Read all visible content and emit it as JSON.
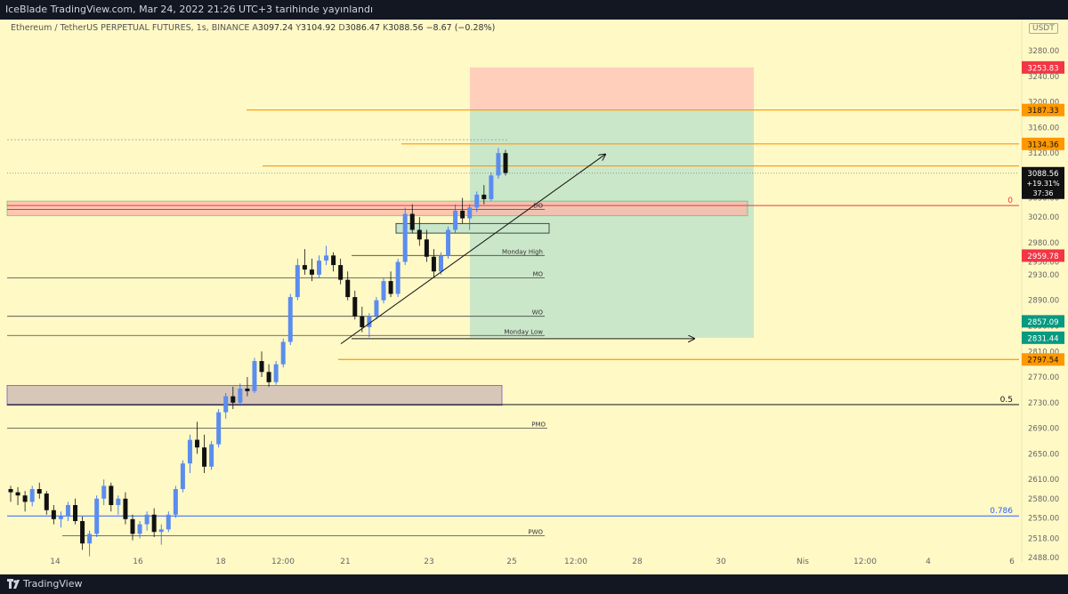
{
  "header": {
    "published": "IceBlade TradingView.com, Mar 24, 2022 21:26 UTC+3 tarihinde yayınlandı"
  },
  "symbol": {
    "name": "Ethereum / TetherUS PERPETUAL FUTURES, 1s, BINANCE",
    "open_label": "A",
    "open": "3097.24",
    "high_label": "Y",
    "high": "3104.92",
    "low_label": "D",
    "low": "3086.47",
    "close_label": "K",
    "close": "3088.56",
    "change": "−8.67 (−0.28%)"
  },
  "currency_badge": "USDT",
  "footer": {
    "brand": "TradingView"
  },
  "colors": {
    "background": "#fff9c6",
    "orange_level": "#ff9800",
    "red_label": "#f23645",
    "teal_label": "#089981",
    "green_zone": "#c8e6c9",
    "red_zone": "#ffccbc",
    "blue_line": "#2962ff"
  },
  "chart_data": {
    "type": "candlestick",
    "ylim": [
      2470,
      3300
    ],
    "y_ticks": [
      "3280.00",
      "3240.00",
      "3200.00",
      "3160.00",
      "3120.00",
      "3080.00",
      "3050.00",
      "3020.00",
      "2980.00",
      "2950.00",
      "2930.00",
      "2890.00",
      "2850.00",
      "2810.00",
      "2770.00",
      "2730.00",
      "2690.00",
      "2650.00",
      "2610.00",
      "2580.00",
      "2550.00",
      "2518.00",
      "2488.00"
    ],
    "x_ticks": [
      "14",
      "16",
      "18",
      "12:00",
      "21",
      "23",
      "25",
      "12:00",
      "28",
      "30",
      "Nis",
      "12:00",
      "4",
      "6"
    ],
    "price_labels": [
      {
        "value": "3253.83",
        "kind": "red"
      },
      {
        "value": "3187.33",
        "kind": "orange"
      },
      {
        "value": "3134.36",
        "kind": "orange"
      },
      {
        "value": "2959.78",
        "kind": "red"
      },
      {
        "value": "2857.09",
        "kind": "teal"
      },
      {
        "value": "2831.44",
        "kind": "teal"
      },
      {
        "value": "2797.54",
        "kind": "orange"
      }
    ],
    "current_price": {
      "value": "3088.56",
      "change": "+19.31%",
      "countdown": "37:36"
    },
    "levels": [
      {
        "name": "DO",
        "price": 3032
      },
      {
        "name": "Monday High",
        "price": 2960
      },
      {
        "name": "MO",
        "price": 2925
      },
      {
        "name": "WO",
        "price": 2865
      },
      {
        "name": "Monday Low",
        "price": 2835
      },
      {
        "name": "PMO",
        "price": 2690
      },
      {
        "name": "PWO",
        "price": 2522
      }
    ],
    "fib_levels": [
      {
        "label": "0",
        "price": 3038
      },
      {
        "label": "0.5",
        "price": 2727
      },
      {
        "label": "0.786",
        "price": 2553
      }
    ],
    "orange_lines": [
      3187.33,
      3134.36,
      3100,
      2797.54
    ],
    "position": {
      "entry": 3187.33,
      "stop": 3253.83,
      "target": 2831.44
    },
    "candles": [
      [
        2595,
        2600,
        2575,
        2590
      ],
      [
        2590,
        2598,
        2570,
        2585
      ],
      [
        2585,
        2592,
        2560,
        2575
      ],
      [
        2575,
        2600,
        2568,
        2595
      ],
      [
        2595,
        2605,
        2580,
        2588
      ],
      [
        2588,
        2592,
        2555,
        2562
      ],
      [
        2562,
        2570,
        2540,
        2548
      ],
      [
        2548,
        2560,
        2535,
        2552
      ],
      [
        2552,
        2575,
        2545,
        2570
      ],
      [
        2570,
        2580,
        2540,
        2545
      ],
      [
        2545,
        2552,
        2500,
        2510
      ],
      [
        2510,
        2530,
        2490,
        2525
      ],
      [
        2525,
        2585,
        2520,
        2580
      ],
      [
        2580,
        2610,
        2570,
        2600
      ],
      [
        2600,
        2605,
        2560,
        2570
      ],
      [
        2570,
        2585,
        2555,
        2580
      ],
      [
        2580,
        2590,
        2540,
        2548
      ],
      [
        2548,
        2555,
        2515,
        2525
      ],
      [
        2525,
        2545,
        2518,
        2540
      ],
      [
        2540,
        2560,
        2530,
        2555
      ],
      [
        2555,
        2565,
        2520,
        2528
      ],
      [
        2528,
        2540,
        2508,
        2532
      ],
      [
        2532,
        2560,
        2528,
        2555
      ],
      [
        2555,
        2600,
        2550,
        2595
      ],
      [
        2595,
        2640,
        2590,
        2635
      ],
      [
        2635,
        2680,
        2620,
        2672
      ],
      [
        2672,
        2700,
        2650,
        2660
      ],
      [
        2660,
        2680,
        2620,
        2630
      ],
      [
        2630,
        2670,
        2625,
        2665
      ],
      [
        2665,
        2720,
        2660,
        2715
      ],
      [
        2715,
        2745,
        2705,
        2740
      ],
      [
        2740,
        2755,
        2720,
        2730
      ],
      [
        2730,
        2760,
        2725,
        2752
      ],
      [
        2752,
        2770,
        2740,
        2748
      ],
      [
        2748,
        2800,
        2745,
        2795
      ],
      [
        2795,
        2810,
        2770,
        2778
      ],
      [
        2778,
        2790,
        2755,
        2762
      ],
      [
        2762,
        2795,
        2758,
        2790
      ],
      [
        2790,
        2830,
        2785,
        2825
      ],
      [
        2825,
        2900,
        2820,
        2895
      ],
      [
        2895,
        2955,
        2890,
        2945
      ],
      [
        2945,
        2970,
        2930,
        2938
      ],
      [
        2938,
        2955,
        2920,
        2930
      ],
      [
        2930,
        2960,
        2925,
        2952
      ],
      [
        2952,
        2975,
        2945,
        2960
      ],
      [
        2960,
        2965,
        2935,
        2945
      ],
      [
        2945,
        2955,
        2915,
        2922
      ],
      [
        2922,
        2935,
        2890,
        2895
      ],
      [
        2895,
        2905,
        2860,
        2865
      ],
      [
        2865,
        2880,
        2840,
        2848
      ],
      [
        2848,
        2870,
        2832,
        2865
      ],
      [
        2865,
        2895,
        2860,
        2890
      ],
      [
        2890,
        2925,
        2885,
        2920
      ],
      [
        2920,
        2935,
        2895,
        2900
      ],
      [
        2900,
        2955,
        2895,
        2950
      ],
      [
        2950,
        3035,
        2945,
        3025
      ],
      [
        3025,
        3040,
        2995,
        3000
      ],
      [
        3000,
        3020,
        2975,
        2985
      ],
      [
        2985,
        3000,
        2950,
        2958
      ],
      [
        2958,
        2970,
        2925,
        2935
      ],
      [
        2935,
        2965,
        2930,
        2960
      ],
      [
        2960,
        3005,
        2955,
        3000
      ],
      [
        3000,
        3040,
        2995,
        3030
      ],
      [
        3030,
        3050,
        3010,
        3018
      ],
      [
        3018,
        3040,
        3000,
        3035
      ],
      [
        3035,
        3060,
        3028,
        3055
      ],
      [
        3055,
        3070,
        3040,
        3048
      ],
      [
        3048,
        3090,
        3045,
        3085
      ],
      [
        3085,
        3128,
        3080,
        3120
      ],
      [
        3120,
        3125,
        3085,
        3089
      ]
    ]
  }
}
